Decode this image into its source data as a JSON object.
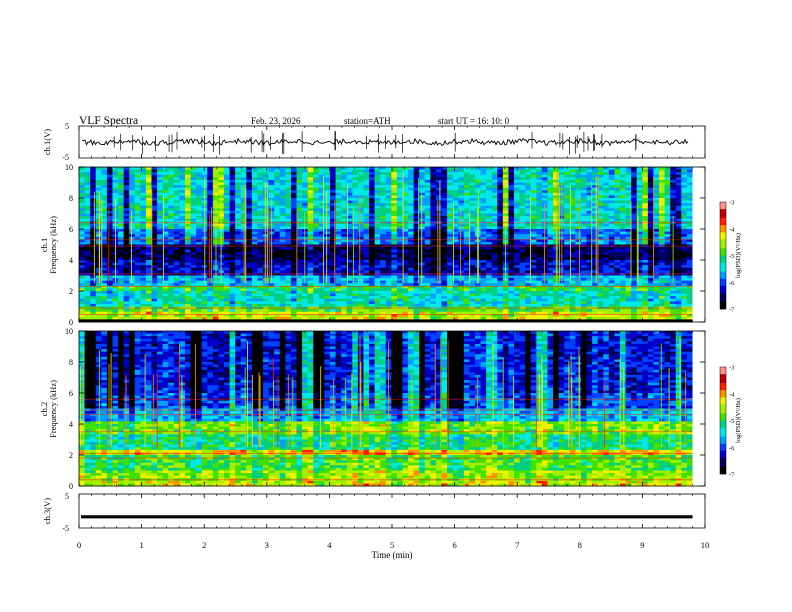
{
  "header": {
    "title": "VLF  Spectra",
    "date": "Feb. 23, 2026",
    "station": "station=ATH",
    "start_ut": "start  UT  =    16: 10: 0"
  },
  "colors": {
    "colormap": [
      "#000000",
      "#00005a",
      "#0000c8",
      "#0040ff",
      "#00a0ff",
      "#00e8e8",
      "#00d080",
      "#40e000",
      "#a0f000",
      "#f0f000",
      "#ff9000",
      "#ff2000",
      "#c00000",
      "#ff9090",
      "#ffffff"
    ],
    "trace": "#000000",
    "axis": "#000000"
  },
  "chart_data": [
    {
      "name": "ch1-voltage",
      "type": "line",
      "ylabel": "ch.1(V)",
      "ylim": [
        -5,
        5
      ],
      "yticks": [
        "5",
        "-5"
      ],
      "xlim": [
        0,
        10
      ],
      "level": 0,
      "spikes": "dense vertical spikes"
    },
    {
      "name": "ch1-spectrogram",
      "type": "heatmap",
      "ylabel": "ch.1\nFrequency  (kHz)",
      "ylim": [
        0,
        10
      ],
      "yticks": [
        "0",
        "2",
        "4",
        "6",
        "8",
        "10"
      ],
      "xlim": [
        0,
        10
      ],
      "data_end_min": 9.8,
      "colorbar": {
        "label": "log(PSD)(V²/Hz)",
        "range": [
          -7,
          -3
        ],
        "ticks": [
          "-3",
          "-4",
          "-5",
          "-6",
          "-7"
        ]
      },
      "band_levels": [
        [
          0.0,
          0.25,
          -7.0
        ],
        [
          0.25,
          0.6,
          -4.4
        ],
        [
          0.6,
          1.0,
          -4.8
        ],
        [
          1.0,
          2.0,
          -5.3
        ],
        [
          2.0,
          2.3,
          -5.0
        ],
        [
          2.3,
          3.0,
          -5.6
        ],
        [
          3.0,
          4.0,
          -6.3
        ],
        [
          4.0,
          5.0,
          -6.6
        ],
        [
          5.0,
          6.0,
          -5.9
        ],
        [
          6.0,
          10.0,
          -5.4
        ]
      ]
    },
    {
      "name": "ch2-spectrogram",
      "type": "heatmap",
      "ylabel": "ch.2\nFrequency  (kHz)",
      "ylim": [
        0,
        10
      ],
      "yticks": [
        "0",
        "2",
        "4",
        "6",
        "8",
        "10"
      ],
      "xlim": [
        0,
        10
      ],
      "data_end_min": 9.8,
      "colorbar": {
        "label": "log(PSD)(V²/Hz)",
        "range": [
          -7,
          -3
        ],
        "ticks": [
          "-3",
          "-4",
          "-5",
          "-6",
          "-7"
        ]
      },
      "band_levels": [
        [
          0.0,
          0.3,
          -4.4
        ],
        [
          0.3,
          1.0,
          -4.6
        ],
        [
          1.0,
          2.0,
          -4.9
        ],
        [
          2.0,
          2.3,
          -4.2
        ],
        [
          2.3,
          3.4,
          -5.1
        ],
        [
          3.4,
          4.2,
          -4.7
        ],
        [
          4.2,
          5.0,
          -5.6
        ],
        [
          5.0,
          6.0,
          -6.0
        ],
        [
          6.0,
          10.0,
          -6.2
        ]
      ]
    },
    {
      "name": "ch3-voltage",
      "type": "line",
      "ylabel": "ch.3(V)",
      "ylim": [
        -5,
        5
      ],
      "yticks": [
        "5",
        "-5"
      ],
      "xlim": [
        0,
        10
      ],
      "level": -1.7,
      "spikes": "none"
    }
  ],
  "xaxis": {
    "label": "Time  (min)",
    "ticks": [
      "0",
      "1",
      "2",
      "3",
      "4",
      "5",
      "6",
      "7",
      "8",
      "9",
      "10"
    ],
    "range": [
      0,
      10
    ]
  }
}
